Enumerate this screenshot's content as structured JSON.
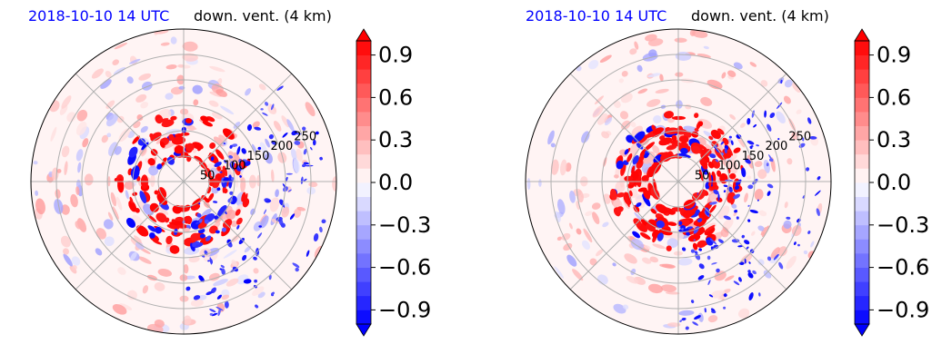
{
  "chart_data": [
    {
      "type": "heatmap",
      "projection": "polar",
      "title_left": "2018-10-10 14 UTC",
      "title_right": "down. vent. (4 km)",
      "radial_ticks": [
        "50",
        "100",
        "150",
        "200",
        "250"
      ],
      "radial_values": [
        50,
        100,
        150,
        200,
        250
      ],
      "rmax": 300,
      "angular_grid_deg": [
        0,
        45,
        90,
        135,
        180,
        225,
        270,
        315
      ],
      "colorbar": {
        "ticks": [
          "0.9",
          "0.6",
          "0.3",
          "0.0",
          "−0.3",
          "−0.6",
          "−0.9"
        ],
        "tick_values": [
          0.9,
          0.6,
          0.3,
          0.0,
          -0.3,
          -0.6,
          -0.9
        ],
        "range": [
          -1.0,
          1.0
        ],
        "extend": "both",
        "cmap": "bwr"
      }
    },
    {
      "type": "heatmap",
      "projection": "polar",
      "title_left": "2018-10-10 14 UTC",
      "title_right": "down. vent. (4 km)",
      "radial_ticks": [
        "50",
        "100",
        "150",
        "200",
        "250"
      ],
      "radial_values": [
        50,
        100,
        150,
        200,
        250
      ],
      "rmax": 300,
      "angular_grid_deg": [
        0,
        45,
        90,
        135,
        180,
        225,
        270,
        315
      ],
      "colorbar": {
        "ticks": [
          "0.9",
          "0.6",
          "0.3",
          "0.0",
          "−0.3",
          "−0.6",
          "−0.9"
        ],
        "tick_values": [
          0.9,
          0.6,
          0.3,
          0.0,
          -0.3,
          -0.6,
          -0.9
        ],
        "range": [
          -1.0,
          1.0
        ],
        "extend": "both",
        "cmap": "bwr"
      }
    }
  ],
  "colors": {
    "title_left": "#0000ff",
    "positive": "#ff0000",
    "negative": "#0000ff",
    "neutral": "#ffffff"
  }
}
